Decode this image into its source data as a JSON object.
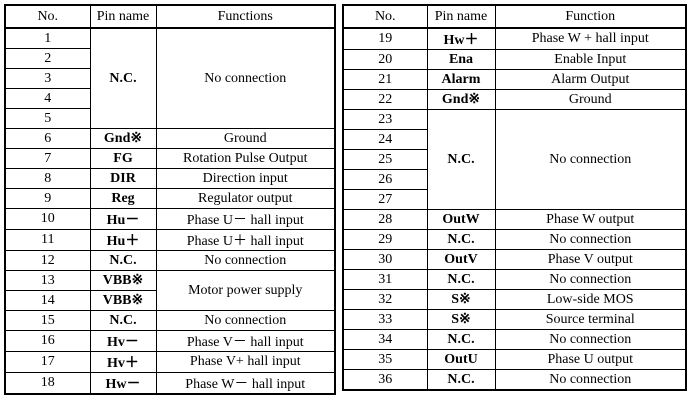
{
  "left_table": {
    "headers": {
      "no": "No.",
      "pin": "Pin name",
      "function": "Functions"
    },
    "rows": [
      {
        "no": "1",
        "pin": "N.C.",
        "function": "No connection",
        "pin_rowspan": 5,
        "function_rowspan": 5
      },
      {
        "no": "2"
      },
      {
        "no": "3"
      },
      {
        "no": "4"
      },
      {
        "no": "5"
      },
      {
        "no": "6",
        "pin": "Gnd※",
        "function": "Ground"
      },
      {
        "no": "7",
        "pin": "FG",
        "function": "Rotation Pulse Output"
      },
      {
        "no": "8",
        "pin": "DIR",
        "function": "Direction input"
      },
      {
        "no": "9",
        "pin": "Reg",
        "function": "Regulator output"
      },
      {
        "no": "10",
        "pin": "Hu－",
        "function": "Phase U－ hall input"
      },
      {
        "no": "11",
        "pin": "Hu＋",
        "function": "Phase U＋ hall input"
      },
      {
        "no": "12",
        "pin": "N.C.",
        "function": "No connection"
      },
      {
        "no": "13",
        "pin": "VBB※",
        "function": "Motor power supply",
        "function_rowspan": 2
      },
      {
        "no": "14",
        "pin": "VBB※"
      },
      {
        "no": "15",
        "pin": "N.C.",
        "function": "No connection"
      },
      {
        "no": "16",
        "pin": "Hv－",
        "function": "Phase V－ hall input"
      },
      {
        "no": "17",
        "pin": "Hv＋",
        "function": "Phase V+ hall input"
      },
      {
        "no": "18",
        "pin": "Hw－",
        "function": "Phase W－ hall input"
      }
    ]
  },
  "right_table": {
    "headers": {
      "no": "No.",
      "pin": "Pin name",
      "function": "Function"
    },
    "rows": [
      {
        "no": "19",
        "pin": "Hw＋",
        "function": "Phase W + hall input"
      },
      {
        "no": "20",
        "pin": "Ena",
        "function": "Enable Input"
      },
      {
        "no": "21",
        "pin": "Alarm",
        "function": "Alarm Output"
      },
      {
        "no": "22",
        "pin": "Gnd※",
        "function": "Ground"
      },
      {
        "no": "23",
        "pin": "N.C.",
        "function": "No connection",
        "pin_rowspan": 5,
        "function_rowspan": 5
      },
      {
        "no": "24"
      },
      {
        "no": "25"
      },
      {
        "no": "26"
      },
      {
        "no": "27"
      },
      {
        "no": "28",
        "pin": "OutW",
        "function": "Phase W output"
      },
      {
        "no": "29",
        "pin": "N.C.",
        "function": "No connection"
      },
      {
        "no": "30",
        "pin": "OutV",
        "function": "Phase V output"
      },
      {
        "no": "31",
        "pin": "N.C.",
        "function": "No connection"
      },
      {
        "no": "32",
        "pin": "S※",
        "function": "Low-side MOS"
      },
      {
        "no": "33",
        "pin": "S※",
        "function": "Source terminal"
      },
      {
        "no": "34",
        "pin": "N.C.",
        "function": "No connection"
      },
      {
        "no": "35",
        "pin": "OutU",
        "function": "Phase U output"
      },
      {
        "no": "36",
        "pin": "N.C.",
        "function": "No connection"
      }
    ]
  }
}
